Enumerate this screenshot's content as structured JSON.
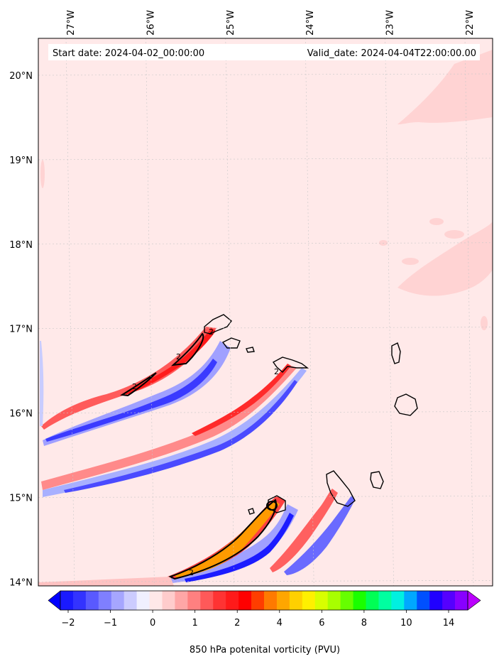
{
  "header": {
    "start_date": "Start date: 2024-04-02_00:00:00",
    "valid_date": "Valid_date: 2024-04-04T22:00:00.00"
  },
  "lon_labels": [
    {
      "name": "lon-27w",
      "label": "27°W",
      "lon": -27
    },
    {
      "name": "lon-26w",
      "label": "26°W",
      "lon": -26
    },
    {
      "name": "lon-25w",
      "label": "25°W",
      "lon": -25
    },
    {
      "name": "lon-24w",
      "label": "24°W",
      "lon": -24
    },
    {
      "name": "lon-23w",
      "label": "23°W",
      "lon": -23
    },
    {
      "name": "lon-22w",
      "label": "22°W",
      "lon": -22
    }
  ],
  "lat_labels": [
    {
      "name": "lat-20n",
      "label": "20°N",
      "lat": 20
    },
    {
      "name": "lat-19n",
      "label": "19°N",
      "lat": 19
    },
    {
      "name": "lat-18n",
      "label": "18°N",
      "lat": 18
    },
    {
      "name": "lat-17n",
      "label": "17°N",
      "lat": 17
    },
    {
      "name": "lat-16n",
      "label": "16°N",
      "lat": 16
    },
    {
      "name": "lat-15n",
      "label": "15°N",
      "lat": 15
    },
    {
      "name": "lat-14n",
      "label": "14°N",
      "lat": 14
    }
  ],
  "contour_labels": [
    "2",
    "2",
    "2",
    "2",
    "2"
  ],
  "colorbar": {
    "label": "850 hPa potenital vorticity (PVU)",
    "ticks": [
      "−2",
      "−1",
      "0",
      "1",
      "2",
      "4",
      "6",
      "8",
      "10",
      "14"
    ],
    "colors": [
      "#1a1aff",
      "#3333ff",
      "#5959ff",
      "#7f7fff",
      "#a6a6ff",
      "#ccccff",
      "#f0f0ff",
      "#ffe8e8",
      "#ffcccc",
      "#ffa6a6",
      "#ff8080",
      "#ff5959",
      "#ff3333",
      "#ff1a1a",
      "#ff0000",
      "#ff3d00",
      "#ff7a00",
      "#ffa600",
      "#ffd000",
      "#fff000",
      "#d8ff00",
      "#a8ff00",
      "#66ff00",
      "#1aff00",
      "#00ff55",
      "#00ffa0",
      "#00f0e0",
      "#00a8ff",
      "#0050ff",
      "#2000ff",
      "#5500ff",
      "#8800ff"
    ],
    "under_color": "#0000ff",
    "over_color": "#bb00ff"
  },
  "colors": {
    "background_field": "#ffe9e9",
    "light_positive": "#ffcfcf",
    "medium_positive": "#ff9090",
    "strong_positive": "#ff2020",
    "orange": "#ff9a00",
    "light_negative": "#dfe3ff",
    "medium_negative": "#9a9aff",
    "strong_negative": "#2a2aff"
  }
}
